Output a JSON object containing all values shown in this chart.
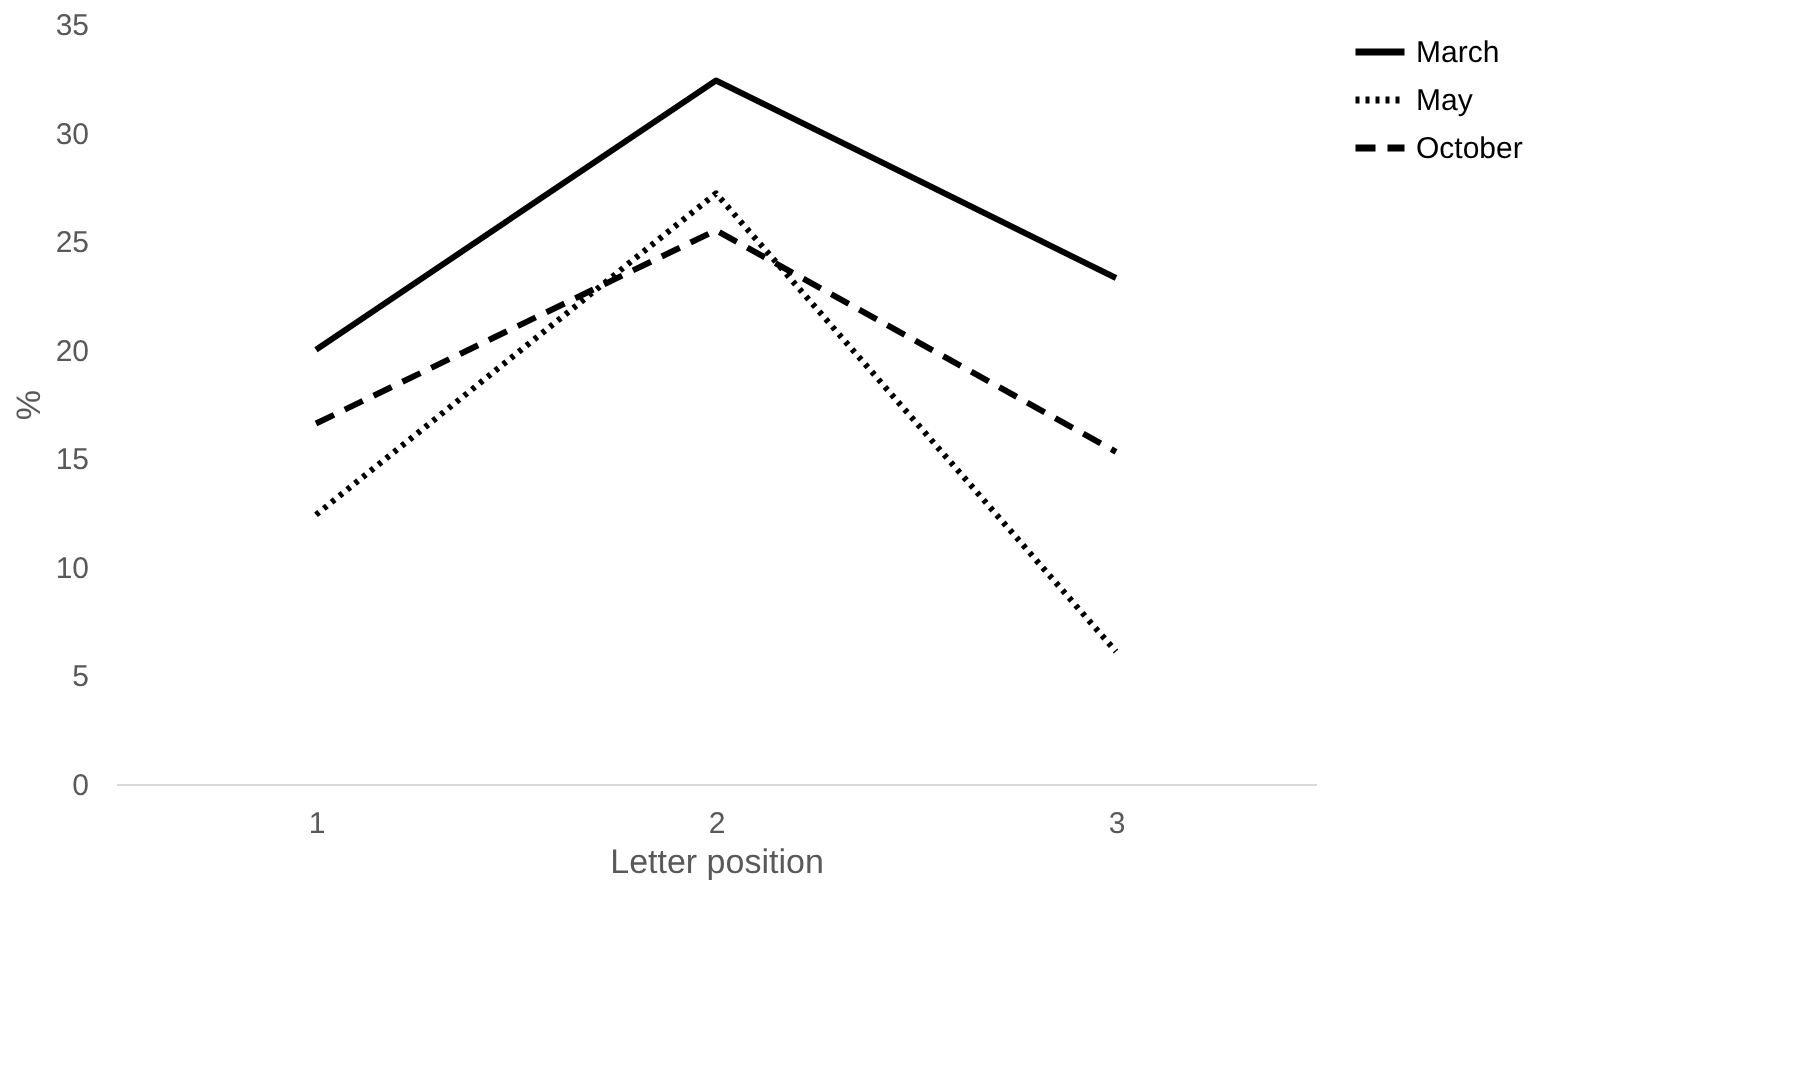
{
  "chart_data": {
    "type": "line",
    "xlabel": "Letter position",
    "ylabel": "%",
    "categories": [
      "1",
      "2",
      "3"
    ],
    "series": [
      {
        "name": "March",
        "color": "#000000",
        "line_style": "solid",
        "values": [
          20,
          32.4,
          23.3
        ]
      },
      {
        "name": "May",
        "color": "#000000",
        "line_style": "dotted",
        "values": [
          12.4,
          27.2,
          6.1
        ]
      },
      {
        "name": "October",
        "color": "#000000",
        "line_style": "dashed",
        "values": [
          16.6,
          25.5,
          15.3
        ]
      }
    ],
    "ylim": [
      0,
      35
    ],
    "yticks": [
      0,
      5,
      10,
      15,
      20,
      25,
      30,
      35
    ],
    "grid": false,
    "legend": "right",
    "marker": "none"
  }
}
